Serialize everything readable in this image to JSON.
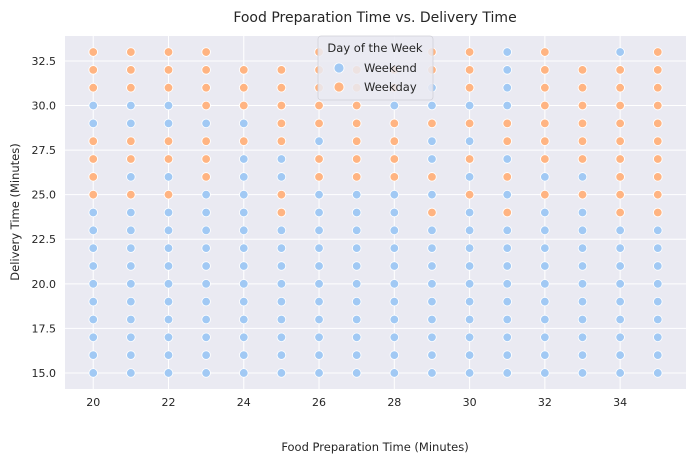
{
  "chart_data": {
    "type": "scatter",
    "title": "Food Preparation Time vs. Delivery Time",
    "xlabel": "Food Preparation Time (Minutes)",
    "ylabel": "Delivery Time (Minutes)",
    "xlim": [
      19.25,
      35.75
    ],
    "ylim": [
      14.1,
      33.9
    ],
    "xticks": [
      "20",
      "22",
      "24",
      "26",
      "28",
      "30",
      "32",
      "34"
    ],
    "yticks": [
      "15.0",
      "17.5",
      "20.0",
      "22.5",
      "25.0",
      "27.5",
      "30.0",
      "32.5"
    ],
    "grid": true,
    "legend": {
      "title": "Day of the Week",
      "placement": "upper-center",
      "entries": [
        "Weekend",
        "Weekday"
      ]
    },
    "colors": {
      "Weekend": "#a1c9f4",
      "Weekday": "#ffb482",
      "background": "#eaeaf2",
      "grid": "#ffffff"
    },
    "x_values": [
      20,
      21,
      22,
      23,
      24,
      25,
      26,
      27,
      28,
      29,
      30,
      31,
      32,
      33,
      34,
      35
    ],
    "series": [
      {
        "name": "Weekend",
        "points_by_x": {
          "20": [
            15,
            16,
            17,
            18,
            19,
            20,
            21,
            22,
            23,
            24,
            25,
            26,
            27,
            28,
            29,
            30,
            31,
            32,
            33
          ],
          "21": [
            15,
            16,
            17,
            18,
            19,
            20,
            21,
            22,
            23,
            24,
            25,
            26,
            27,
            28,
            29,
            30,
            31,
            32,
            33
          ],
          "22": [
            15,
            16,
            17,
            18,
            19,
            20,
            21,
            22,
            23,
            24,
            25,
            26,
            27,
            28,
            29,
            30,
            31,
            32,
            33
          ],
          "23": [
            15,
            16,
            17,
            18,
            19,
            20,
            21,
            22,
            23,
            24,
            25,
            26,
            27,
            28,
            29,
            30,
            31,
            32,
            33
          ],
          "24": [
            15,
            16,
            17,
            18,
            19,
            20,
            21,
            22,
            23,
            24,
            25,
            26,
            27,
            28,
            29,
            30,
            31,
            32
          ],
          "25": [
            15,
            16,
            17,
            18,
            19,
            20,
            21,
            22,
            23,
            24,
            25,
            26,
            27,
            28,
            29,
            30,
            31,
            32
          ],
          "26": [
            15,
            16,
            17,
            18,
            19,
            20,
            21,
            22,
            23,
            24,
            25,
            26,
            27,
            28,
            29,
            30,
            31,
            32,
            33
          ],
          "27": [
            15,
            16,
            17,
            18,
            19,
            20,
            21,
            22,
            23,
            24,
            25,
            26,
            27,
            28,
            29,
            30
          ],
          "28": [
            15,
            16,
            17,
            18,
            19,
            20,
            21,
            22,
            23,
            24,
            25,
            26,
            27,
            28,
            29,
            30
          ],
          "29": [
            15,
            16,
            17,
            18,
            19,
            20,
            21,
            22,
            23,
            24,
            25,
            26,
            27,
            28,
            29,
            30,
            31
          ],
          "30": [
            15,
            16,
            17,
            18,
            19,
            20,
            21,
            22,
            23,
            24,
            25,
            26,
            27,
            28,
            29,
            30,
            31
          ],
          "31": [
            15,
            16,
            17,
            18,
            19,
            20,
            21,
            22,
            23,
            24,
            25,
            26,
            27,
            28,
            29,
            30,
            31,
            32,
            33
          ],
          "32": [
            15,
            16,
            17,
            18,
            19,
            20,
            21,
            22,
            23,
            24,
            25,
            26,
            27,
            28,
            29,
            30,
            31,
            32
          ],
          "33": [
            15,
            16,
            17,
            18,
            19,
            20,
            21,
            22,
            23,
            24,
            25,
            26,
            27,
            28,
            29,
            30,
            31,
            32
          ],
          "34": [
            15,
            16,
            17,
            18,
            19,
            20,
            21,
            22,
            23,
            24,
            25,
            26,
            27,
            28,
            29,
            30,
            31,
            32,
            33
          ],
          "35": [
            15,
            16,
            17,
            18,
            19,
            20,
            21,
            22,
            23,
            24,
            25,
            26,
            27,
            28,
            29,
            30,
            31
          ]
        }
      },
      {
        "name": "Weekday",
        "points_by_x": {
          "20": [
            25,
            26,
            27,
            28,
            31,
            32,
            33
          ],
          "21": [
            25,
            27,
            28,
            31,
            32,
            33
          ],
          "22": [
            25,
            27,
            28,
            31,
            32,
            33
          ],
          "23": [
            26,
            27,
            28,
            30,
            31,
            32,
            33
          ],
          "24": [
            28,
            30,
            31,
            32
          ],
          "25": [
            24,
            25,
            28,
            29,
            30,
            31,
            32
          ],
          "26": [
            26,
            27,
            29,
            30,
            31,
            32,
            33
          ],
          "27": [
            26,
            27,
            28,
            29,
            30,
            31,
            32
          ],
          "28": [
            26,
            27,
            28,
            29,
            31,
            32
          ],
          "29": [
            24,
            26,
            29,
            32,
            33
          ],
          "30": [
            25,
            27,
            29,
            31,
            32,
            33
          ],
          "31": [
            24,
            26,
            28,
            29
          ],
          "32": [
            25,
            27,
            28,
            29,
            30,
            31,
            32,
            33
          ],
          "33": [
            25,
            27,
            28,
            29,
            30,
            31,
            32
          ],
          "34": [
            24,
            25,
            26,
            27,
            28,
            29,
            30,
            31,
            32
          ],
          "35": [
            24,
            25,
            26,
            27,
            28,
            29,
            30,
            31,
            32,
            33
          ]
        }
      }
    ]
  }
}
